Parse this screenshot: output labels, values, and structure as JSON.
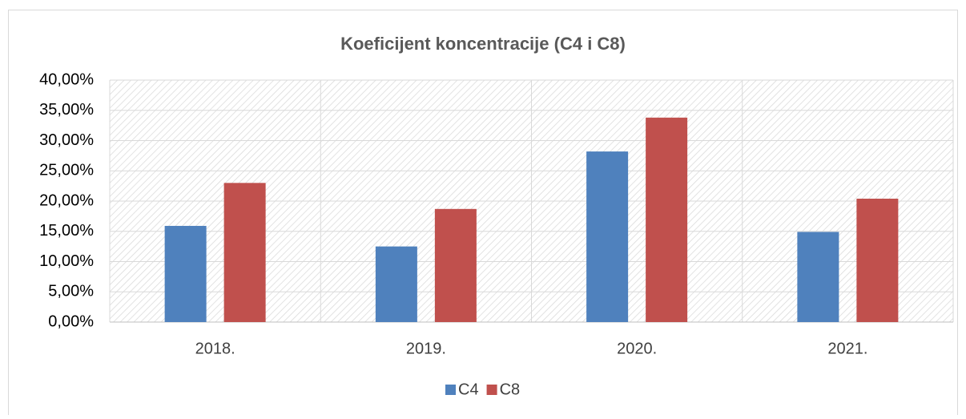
{
  "chart_data": {
    "type": "bar",
    "title": "Koeficijent koncentracije (C4 i C8)",
    "categories": [
      "2018.",
      "2019.",
      "2020.",
      "2021."
    ],
    "series": [
      {
        "name": "C4",
        "color": "#4f81bd",
        "values": [
          15.9,
          12.5,
          28.2,
          14.9
        ]
      },
      {
        "name": "C8",
        "color": "#c0504d",
        "values": [
          23.0,
          18.7,
          33.8,
          20.4
        ]
      }
    ],
    "ylim": [
      0,
      40
    ],
    "yticks": [
      {
        "value": 0,
        "label": "0,00%"
      },
      {
        "value": 5,
        "label": "5,00%"
      },
      {
        "value": 10,
        "label": "10,00%"
      },
      {
        "value": 15,
        "label": "15,00%"
      },
      {
        "value": 20,
        "label": "20,00%"
      },
      {
        "value": 25,
        "label": "25,00%"
      },
      {
        "value": 30,
        "label": "30,00%"
      },
      {
        "value": 35,
        "label": "35,00%"
      },
      {
        "value": 40,
        "label": "40,00%"
      }
    ],
    "grid": true,
    "legend": "bottom"
  }
}
